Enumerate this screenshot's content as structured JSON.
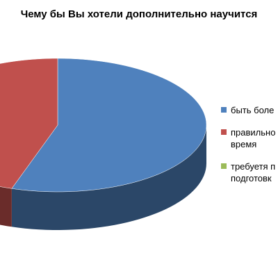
{
  "chart_data": {
    "type": "pie",
    "title": "Чему бы Вы хотели дополнительно научится",
    "categories": [
      "быть боле",
      "правильно время",
      "требуетя п подготовк"
    ],
    "values": [
      55,
      45,
      0
    ],
    "colors": [
      "#4f81bd",
      "#c0504d",
      "#9bbb59"
    ]
  }
}
